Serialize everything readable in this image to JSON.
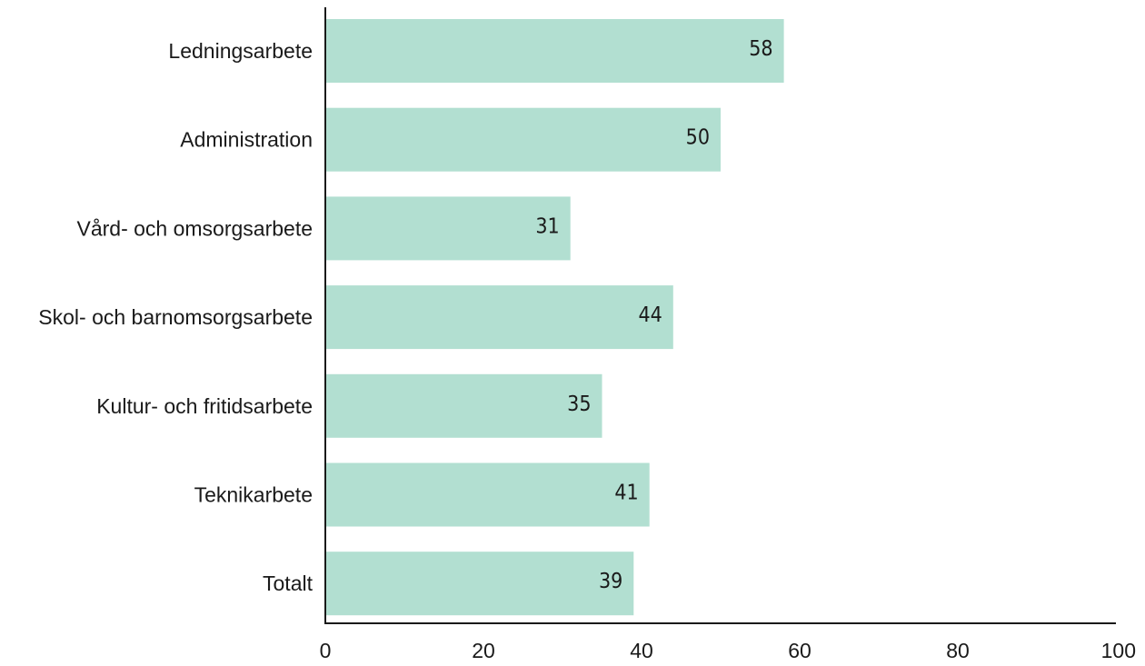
{
  "chart_data": {
    "type": "bar",
    "orientation": "horizontal",
    "categories": [
      "Ledningsarbete",
      "Administration",
      "Vård- och omsorgsarbete",
      "Skol- och barnomsorgsarbete",
      "Kultur- och fritidsarbete",
      "Teknikarbete",
      "Totalt"
    ],
    "values": [
      58,
      50,
      31,
      44,
      35,
      41,
      39
    ],
    "data_labels": [
      "58",
      "50",
      "31",
      "44",
      "35",
      "41",
      "39"
    ],
    "xlim": [
      0,
      100
    ],
    "xticks": [
      0,
      20,
      40,
      60,
      80,
      100
    ],
    "xtick_labels": [
      "0",
      "20",
      "40",
      "60",
      "80",
      "100"
    ],
    "title": "",
    "xlabel": "",
    "ylabel": "",
    "grid": false,
    "legend": "none",
    "colors": {
      "bar": "#b2dfd1",
      "axis": "#1a1a1a",
      "text": "#1a1a1a"
    }
  }
}
